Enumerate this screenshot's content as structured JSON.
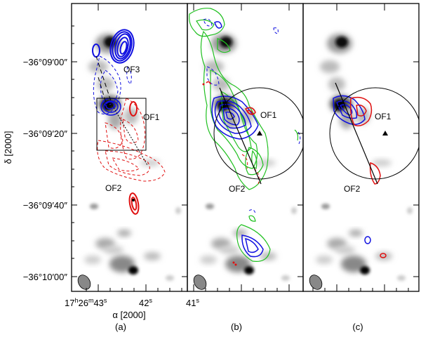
{
  "figure": {
    "y_ticks": [
      "−36°09′00″",
      "−36°09′20″",
      "−36°09′40″",
      "−36°10′00″"
    ],
    "y_title": "δ [2000]",
    "x_ticks": {
      "h": "17",
      "m": "26",
      "s43": "43",
      "s42": "42",
      "s41": "41"
    },
    "x_title": "α [2000]",
    "panels": [
      {
        "caption": "(a)",
        "labels": [
          "OF3",
          "OF1",
          "OF2"
        ]
      },
      {
        "caption": "(b)",
        "labels": [
          "OF1",
          "OF2"
        ]
      },
      {
        "caption": "(c)",
        "labels": [
          "OF1",
          "OF2"
        ]
      }
    ],
    "colors": {
      "blue": "#1010e0",
      "red": "#e01010",
      "green": "#20c020"
    }
  }
}
